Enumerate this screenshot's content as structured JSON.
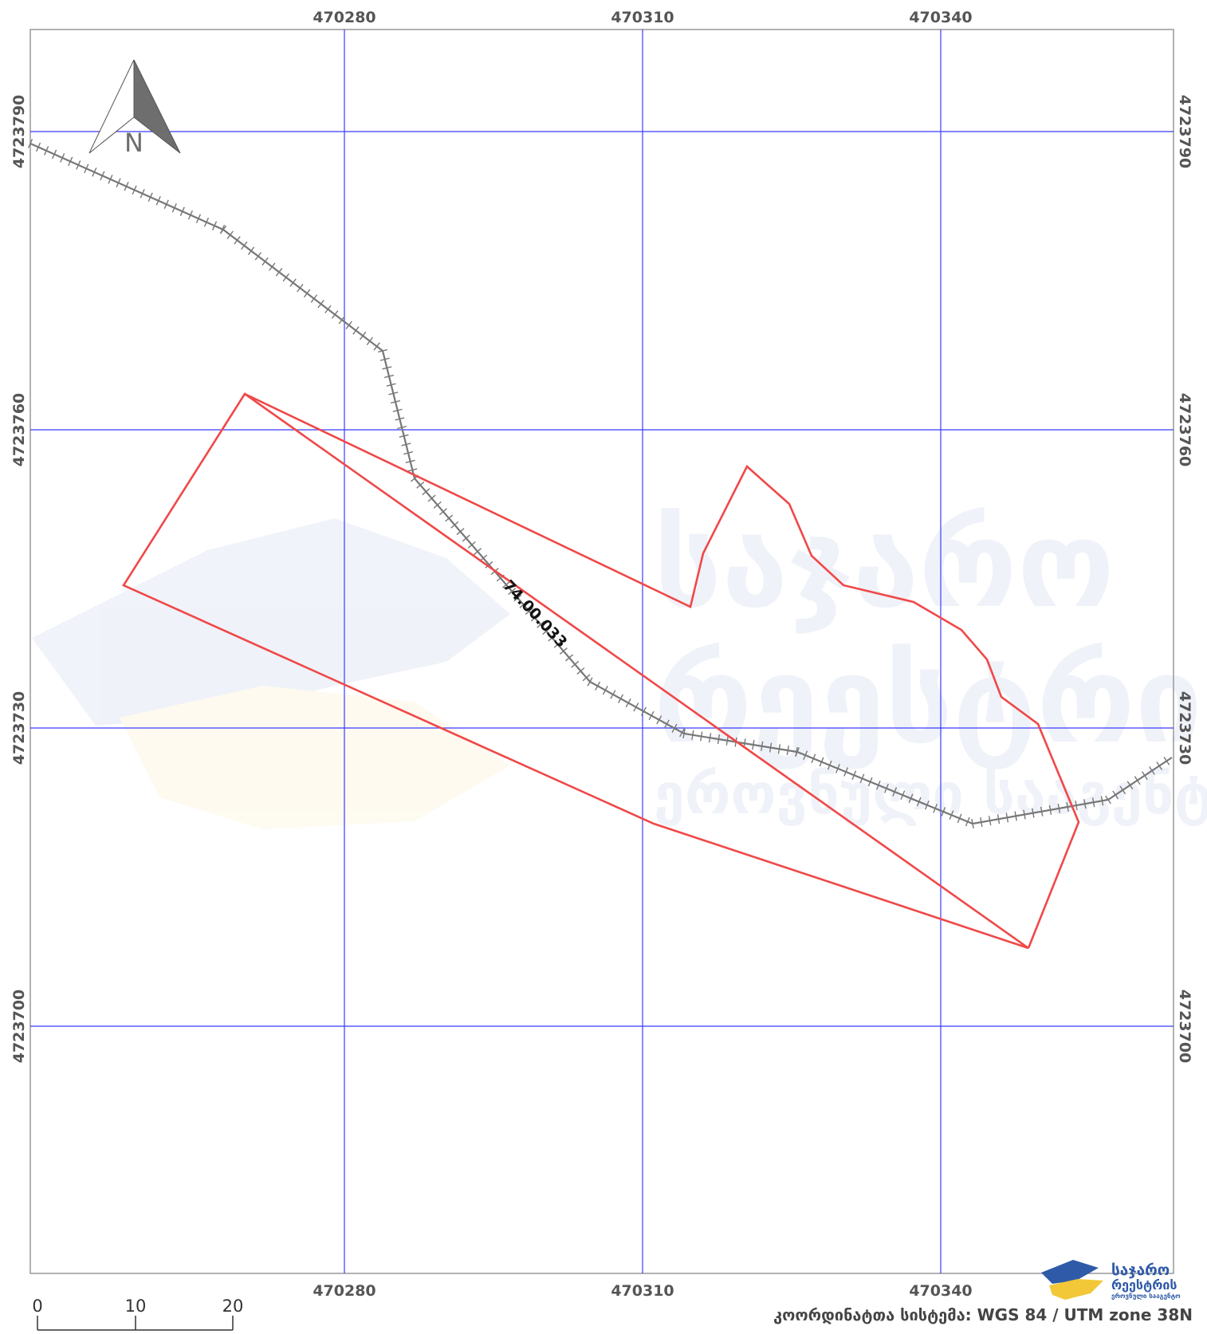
{
  "map": {
    "north_arrow_label": "N",
    "x_ticks": [
      "470280",
      "470310",
      "470340"
    ],
    "y_ticks": [
      "4723790",
      "4723760",
      "4723730",
      "4723700"
    ],
    "parcel_label": "74.00.033",
    "scale_bar": {
      "labels": [
        "0",
        "10",
        "20"
      ]
    },
    "coordinate_system": "კოორდინატთა სისტემა: WGS 84 / UTM zone 38N",
    "logo": {
      "line1": "საჯარო",
      "line2": "რეესტრის",
      "line3": "ეროვნული სააგენტო"
    },
    "watermark": {
      "line1": "საჯარო",
      "line2": "რეესტრის",
      "line3": "ეროვნული სააგენტო"
    },
    "colors": {
      "grid": "#3b3bff",
      "parcel": "#f04848",
      "railway": "#777777",
      "frame": "#999999",
      "logo_blue": "#2f5aa8",
      "logo_yellow": "#f2c838"
    }
  }
}
